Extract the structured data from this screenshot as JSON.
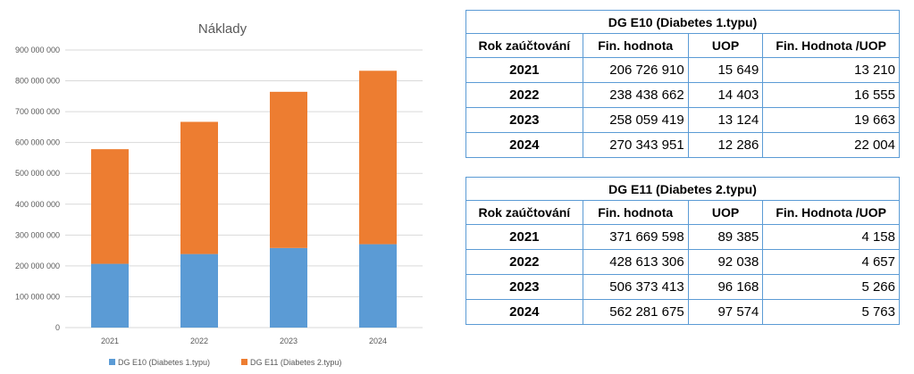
{
  "chart_data": {
    "type": "bar",
    "stacked": true,
    "title": "Náklady",
    "categories": [
      "2021",
      "2022",
      "2023",
      "2024"
    ],
    "series": [
      {
        "name": "DG E10 (Diabetes 1.typu)",
        "color": "#5b9bd5",
        "values": [
          206726910,
          238438662,
          258059419,
          270343951
        ]
      },
      {
        "name": "DG E11 (Diabetes 2.typu)",
        "color": "#ed7d31",
        "values": [
          371669598,
          428613306,
          506373413,
          562281675
        ]
      }
    ],
    "yticks": [
      "0",
      "100 000 000",
      "200 000 000",
      "300 000 000",
      "400 000 000",
      "500 000 000",
      "600 000 000",
      "700 000 000",
      "800 000 000",
      "900 000 000"
    ],
    "ylim": [
      0,
      900000000
    ],
    "legend_position": "bottom",
    "grid": true
  },
  "tables": [
    {
      "title": "DG E10 (Diabetes 1.typu)",
      "headers": [
        "Rok zaúčtování",
        "Fin. hodnota",
        "UOP",
        "Fin. Hodnota /UOP"
      ],
      "rows": [
        [
          "2021",
          "206 726 910",
          "15 649",
          "13 210"
        ],
        [
          "2022",
          "238 438 662",
          "14 403",
          "16 555"
        ],
        [
          "2023",
          "258 059 419",
          "13 124",
          "19 663"
        ],
        [
          "2024",
          "270 343 951",
          "12 286",
          "22 004"
        ]
      ]
    },
    {
      "title": "DG E11 (Diabetes 2.typu)",
      "headers": [
        "Rok zaúčtování",
        "Fin. hodnota",
        "UOP",
        "Fin. Hodnota /UOP"
      ],
      "rows": [
        [
          "2021",
          "371 669 598",
          "89 385",
          "4 158"
        ],
        [
          "2022",
          "428 613 306",
          "92 038",
          "4 657"
        ],
        [
          "2023",
          "506 373 413",
          "96 168",
          "5 266"
        ],
        [
          "2024",
          "562 281 675",
          "97 574",
          "5 763"
        ]
      ]
    }
  ]
}
